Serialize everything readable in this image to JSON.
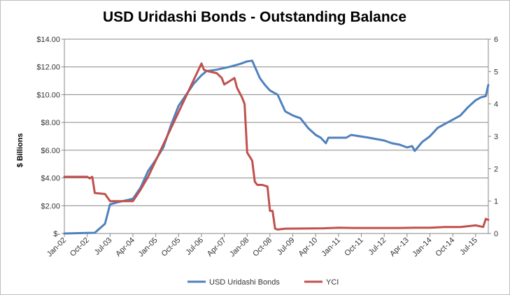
{
  "chart_data": {
    "type": "line",
    "title": "USD Uridashi Bonds - Outstanding Balance",
    "ylabel": "$ Billions",
    "ylabel_right": "",
    "ylim": [
      0,
      14
    ],
    "ylim_right": [
      0,
      6
    ],
    "y_ticks": [
      "$-",
      "$2.00",
      "$4.00",
      "$6.00",
      "$8.00",
      "$10.00",
      "$12.00",
      "$14.00"
    ],
    "y_tick_values": [
      0,
      2,
      4,
      6,
      8,
      10,
      12,
      14
    ],
    "y_right_ticks": [
      "0",
      "1",
      "2",
      "3",
      "4",
      "5",
      "6"
    ],
    "y_right_tick_values": [
      0,
      1,
      2,
      3,
      4,
      5,
      6
    ],
    "x_start": "Jan-02",
    "x_end": "Dec-15",
    "x_ticks": [
      "Jan-02",
      "Oct-02",
      "Jul-03",
      "Apr-04",
      "Jan-05",
      "Oct-05",
      "Jul-06",
      "Apr-07",
      "Jan-08",
      "Oct-08",
      "Jul-09",
      "Apr-10",
      "Jan-11",
      "Oct-11",
      "Jul-12",
      "Apr-13",
      "Jan-14",
      "Oct-14",
      "Jul-15"
    ],
    "legend_position": "bottom",
    "grid": "horizontal",
    "series": [
      {
        "name": "USD Uridashi Bonds",
        "axis": "left",
        "color": "#4f81bd",
        "points": [
          [
            "Jan-02",
            0
          ],
          [
            "Jan-03",
            0.05
          ],
          [
            "May-03",
            0.7
          ],
          [
            "Jul-03",
            2.1
          ],
          [
            "Oct-03",
            2.25
          ],
          [
            "Apr-04",
            2.5
          ],
          [
            "Jul-04",
            3.3
          ],
          [
            "Oct-04",
            4.5
          ],
          [
            "Jan-05",
            5.3
          ],
          [
            "Apr-05",
            6.2
          ],
          [
            "Jul-05",
            7.8
          ],
          [
            "Oct-05",
            9.2
          ],
          [
            "Jan-06",
            10.0
          ],
          [
            "Apr-06",
            10.8
          ],
          [
            "Jul-06",
            11.4
          ],
          [
            "Sep-06",
            11.7
          ],
          [
            "Jan-07",
            11.8
          ],
          [
            "Jun-07",
            12.0
          ],
          [
            "Oct-07",
            12.2
          ],
          [
            "Jan-08",
            12.4
          ],
          [
            "Mar-08",
            12.45
          ],
          [
            "Jun-08",
            11.2
          ],
          [
            "Aug-08",
            10.7
          ],
          [
            "Oct-08",
            10.3
          ],
          [
            "Jan-09",
            10.0
          ],
          [
            "Apr-09",
            8.8
          ],
          [
            "Jul-09",
            8.5
          ],
          [
            "Oct-09",
            8.3
          ],
          [
            "Jan-10",
            7.6
          ],
          [
            "Apr-10",
            7.1
          ],
          [
            "Jun-10",
            6.9
          ],
          [
            "Aug-10",
            6.5
          ],
          [
            "Sep-10",
            6.9
          ],
          [
            "Jan-11",
            6.9
          ],
          [
            "Apr-11",
            6.9
          ],
          [
            "Jun-11",
            7.1
          ],
          [
            "Jan-12",
            6.9
          ],
          [
            "Apr-12",
            6.8
          ],
          [
            "Jul-12",
            6.7
          ],
          [
            "Oct-12",
            6.5
          ],
          [
            "Jan-13",
            6.4
          ],
          [
            "Apr-13",
            6.2
          ],
          [
            "Jun-13",
            6.3
          ],
          [
            "Jul-13",
            5.95
          ],
          [
            "Oct-13",
            6.6
          ],
          [
            "Jan-14",
            7.0
          ],
          [
            "Apr-14",
            7.6
          ],
          [
            "Jul-14",
            7.9
          ],
          [
            "Oct-14",
            8.2
          ],
          [
            "Jan-15",
            8.5
          ],
          [
            "Apr-15",
            9.1
          ],
          [
            "Jul-15",
            9.6
          ],
          [
            "Sep-15",
            9.8
          ],
          [
            "Nov-15",
            9.9
          ],
          [
            "Dec-15",
            10.7
          ]
        ]
      },
      {
        "name": "YCI",
        "axis": "right",
        "color": "#c0504d",
        "points": [
          [
            "Jan-02",
            1.75
          ],
          [
            "Oct-02",
            1.75
          ],
          [
            "Nov-02",
            1.7
          ],
          [
            "Dec-02",
            1.75
          ],
          [
            "Jan-03",
            1.25
          ],
          [
            "May-03",
            1.22
          ],
          [
            "Jul-03",
            1.0
          ],
          [
            "Oct-03",
            1.0
          ],
          [
            "Jan-04",
            1.0
          ],
          [
            "Apr-04",
            1.0
          ],
          [
            "Jul-04",
            1.35
          ],
          [
            "Oct-04",
            1.75
          ],
          [
            "Jan-05",
            2.25
          ],
          [
            "Apr-05",
            2.75
          ],
          [
            "Jul-05",
            3.25
          ],
          [
            "Oct-05",
            3.75
          ],
          [
            "Jan-06",
            4.25
          ],
          [
            "Apr-06",
            4.75
          ],
          [
            "Jul-06",
            5.25
          ],
          [
            "Aug-06",
            5.05
          ],
          [
            "Oct-06",
            5.0
          ],
          [
            "Jan-07",
            4.95
          ],
          [
            "Mar-07",
            4.8
          ],
          [
            "Apr-07",
            4.6
          ],
          [
            "Jun-07",
            4.7
          ],
          [
            "Aug-07",
            4.8
          ],
          [
            "Sep-07",
            4.5
          ],
          [
            "Nov-07",
            4.2
          ],
          [
            "Dec-07",
            4.0
          ],
          [
            "Jan-08",
            2.5
          ],
          [
            "Mar-08",
            2.25
          ],
          [
            "Apr-08",
            1.6
          ],
          [
            "May-08",
            1.5
          ],
          [
            "Jul-08",
            1.5
          ],
          [
            "Sep-08",
            1.45
          ],
          [
            "Oct-08",
            0.7
          ],
          [
            "Nov-08",
            0.7
          ],
          [
            "Dec-08",
            0.15
          ],
          [
            "Jan-09",
            0.12
          ],
          [
            "Apr-09",
            0.15
          ],
          [
            "Jul-10",
            0.16
          ],
          [
            "Jan-11",
            0.18
          ],
          [
            "Jul-11",
            0.17
          ],
          [
            "Jan-13",
            0.17
          ],
          [
            "Jul-13",
            0.18
          ],
          [
            "Jan-14",
            0.18
          ],
          [
            "Jul-14",
            0.2
          ],
          [
            "Jan-15",
            0.2
          ],
          [
            "Jul-15",
            0.25
          ],
          [
            "Oct-15",
            0.2
          ],
          [
            "Nov-15",
            0.45
          ],
          [
            "Dec-15",
            0.42
          ]
        ]
      }
    ]
  }
}
